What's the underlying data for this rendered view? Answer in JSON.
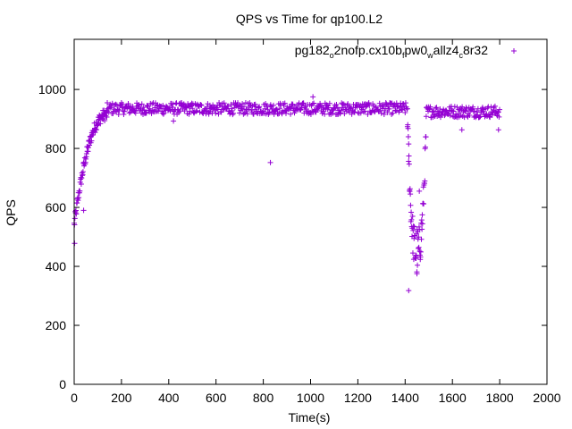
{
  "chart_data": {
    "type": "scatter",
    "title": "QPS vs Time for qp100.L2",
    "xlabel": "Time(s)",
    "ylabel": "QPS",
    "xlim": [
      0,
      2000
    ],
    "ylim": [
      0,
      1170
    ],
    "xticks": [
      0,
      200,
      400,
      600,
      800,
      1000,
      1200,
      1400,
      1600,
      1800,
      2000
    ],
    "yticks": [
      0,
      200,
      400,
      600,
      800,
      1000
    ],
    "legend": {
      "label_parts": [
        {
          "text": "pg182",
          "sub": false
        },
        {
          "text": "o",
          "sub": true
        },
        {
          "text": "2nofp.cx10b",
          "sub": false
        },
        {
          "text": "f",
          "sub": true
        },
        {
          "text": "pw0",
          "sub": false
        },
        {
          "text": "w",
          "sub": true
        },
        {
          "text": "allz4",
          "sub": false
        },
        {
          "text": "c",
          "sub": true
        },
        {
          "text": "8r32",
          "sub": false
        }
      ],
      "position": "top-right",
      "marker": "+"
    },
    "marker_color": "#9400d3",
    "series": [
      {
        "name": "pg182_o2nofp.cx10b_fpw0_wallz4_c8r32",
        "segments": [
          {
            "phase": "ramp-up",
            "t_start": 0,
            "t_end": 140,
            "qps_start": 540,
            "qps_end": 915
          },
          {
            "phase": "steady",
            "t_start": 140,
            "t_end": 1410,
            "qps_mean": 935,
            "qps_spread": 20
          },
          {
            "phase": "dip",
            "t_start": 1410,
            "t_end": 1490,
            "qps_min": 318
          },
          {
            "phase": "recovery",
            "t_start": 1490,
            "t_end": 1800,
            "qps_mean": 925,
            "qps_spread": 20
          }
        ],
        "notable_points": [
          {
            "x": 2,
            "y": 478
          },
          {
            "x": 40,
            "y": 590
          },
          {
            "x": 830,
            "y": 752
          },
          {
            "x": 1010,
            "y": 975
          },
          {
            "x": 1415,
            "y": 318
          },
          {
            "x": 1415,
            "y": 815
          },
          {
            "x": 1795,
            "y": 863
          },
          {
            "x": 1640,
            "y": 863
          },
          {
            "x": 420,
            "y": 893
          },
          {
            "x": 1460,
            "y": 655
          },
          {
            "x": 1450,
            "y": 375
          }
        ]
      }
    ]
  }
}
